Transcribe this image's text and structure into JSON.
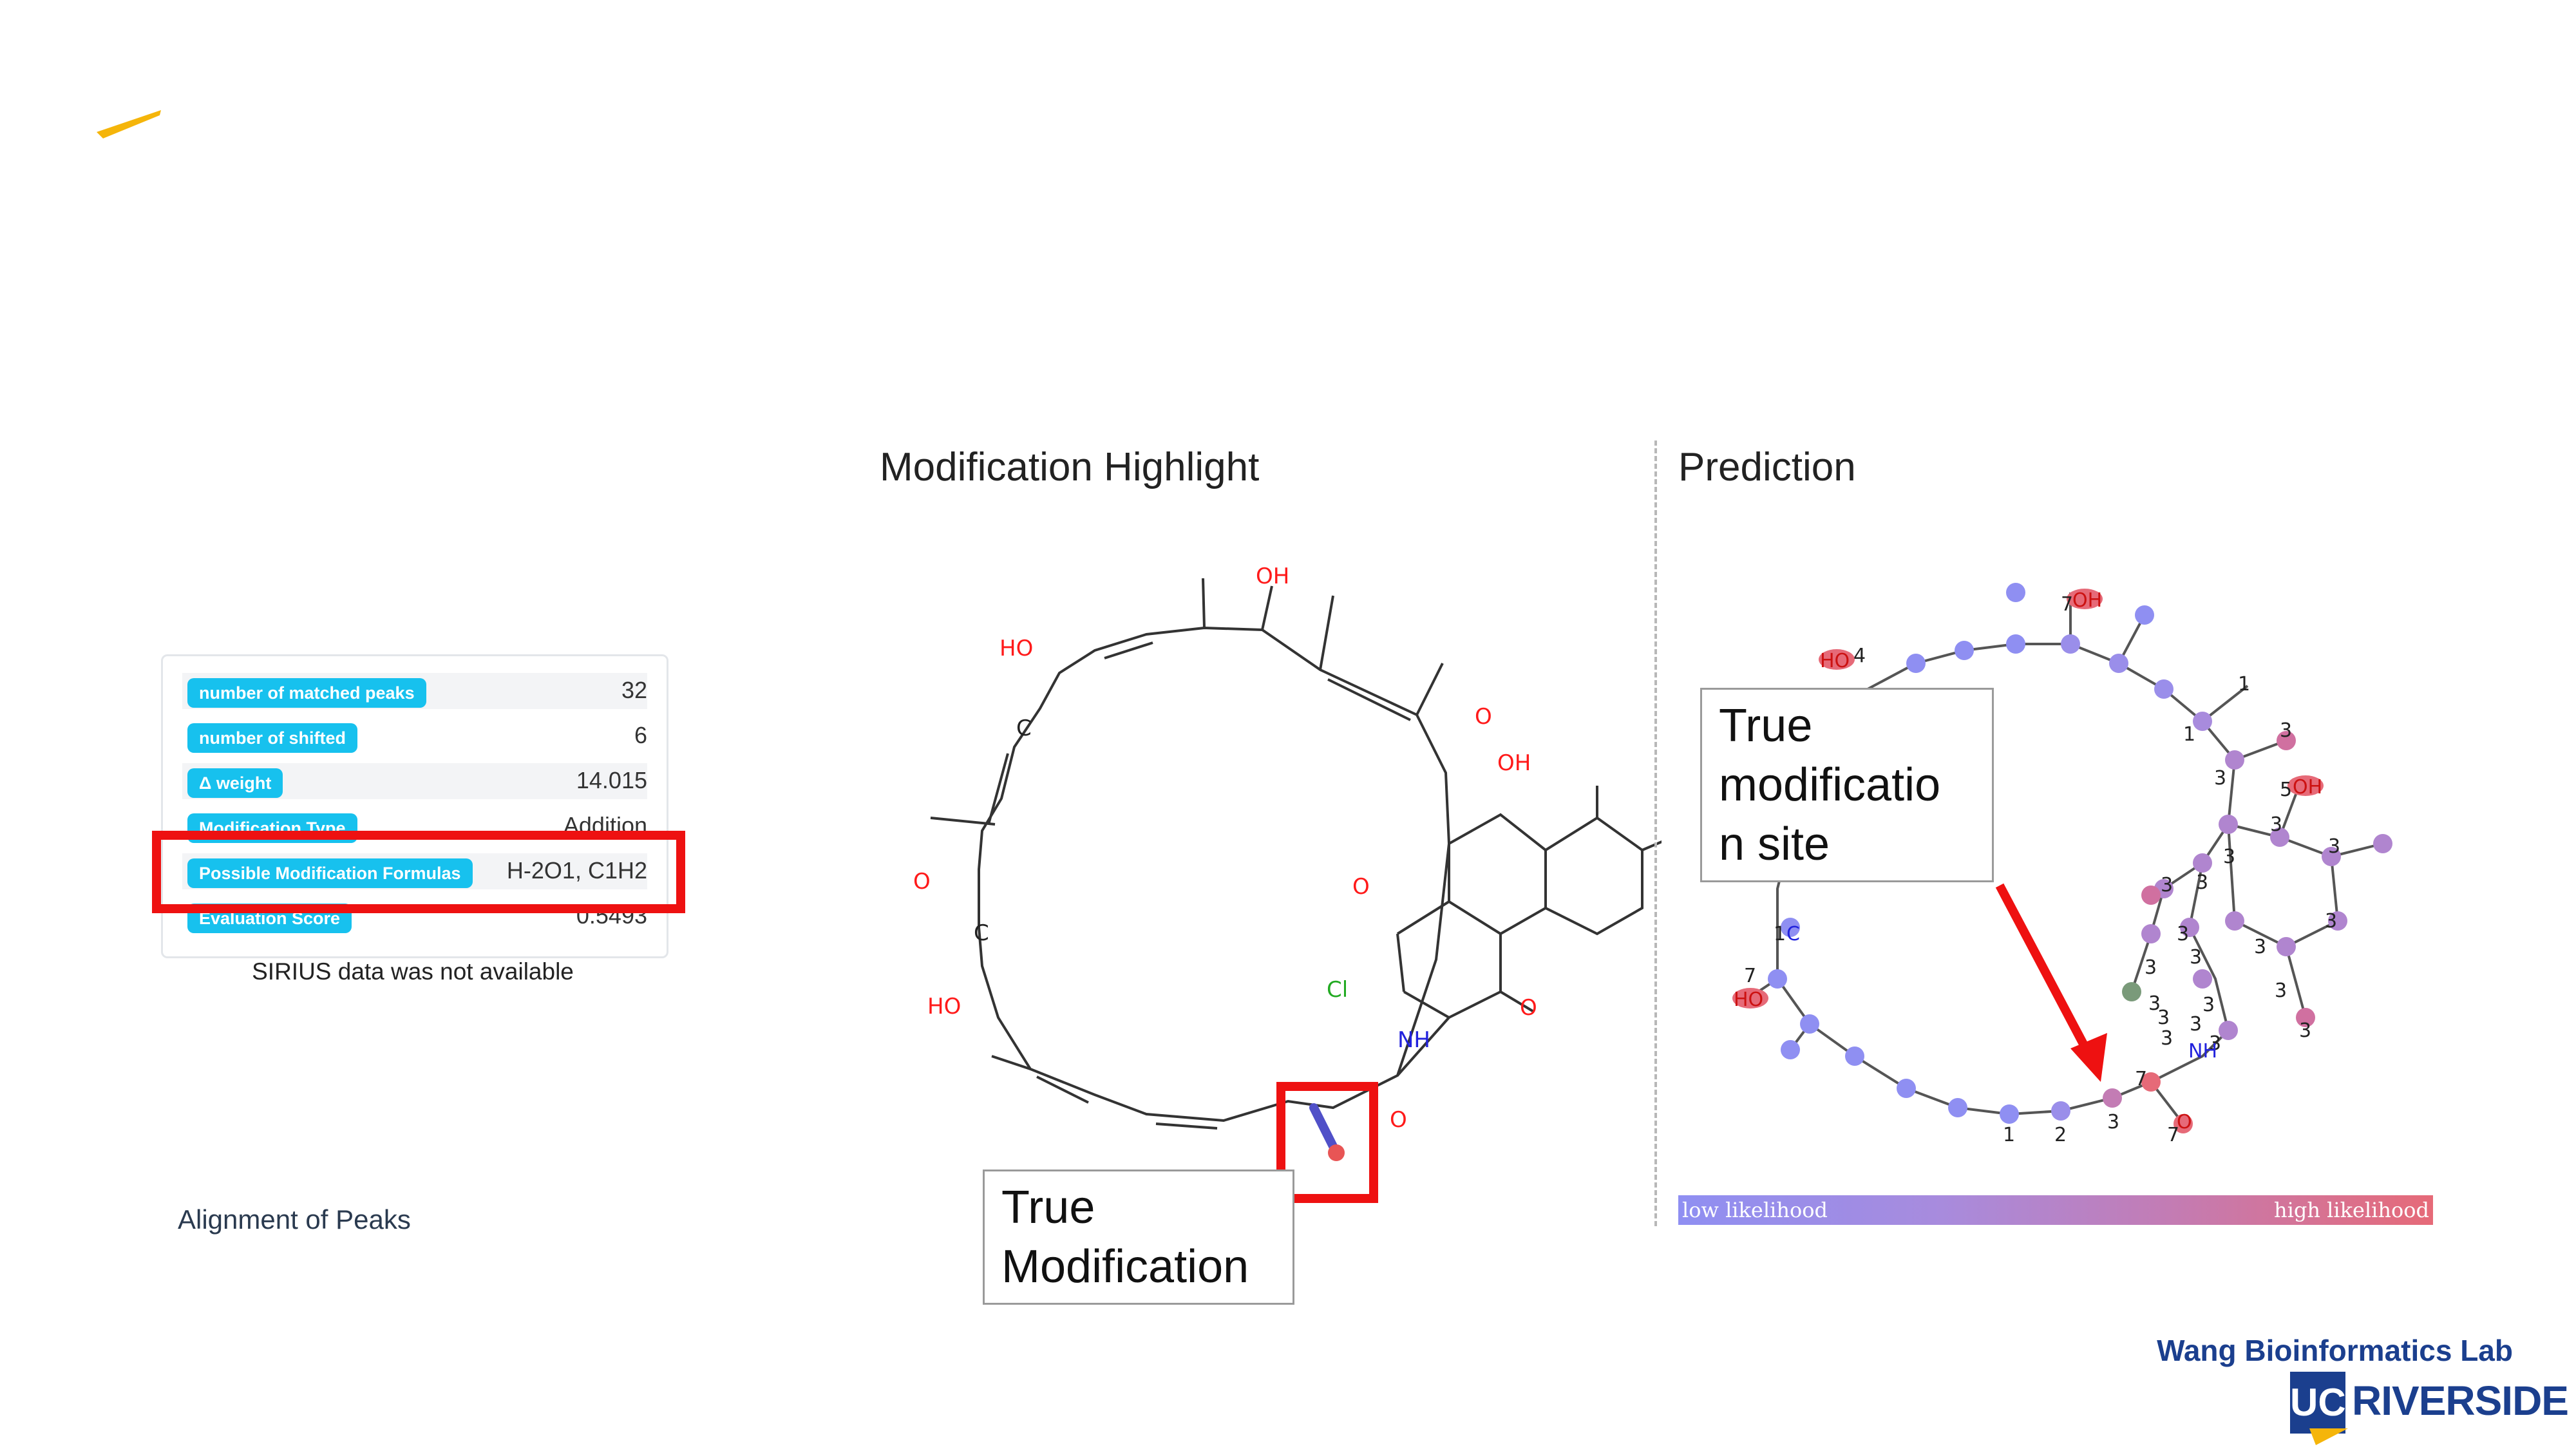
{
  "stats": [
    {
      "label": "number of matched peaks",
      "value": "32"
    },
    {
      "label": "number of shifted",
      "value": "6"
    },
    {
      "label": "Δ weight",
      "value": "14.015"
    },
    {
      "label": "Modification Type",
      "value": "Addition"
    },
    {
      "label": "Possible Modification Formulas",
      "value": "H-2O1, C1H2"
    },
    {
      "label": "Evaluation Score",
      "value": "0.5493"
    }
  ],
  "sirius_note": "SIRIUS data was not available",
  "alignment_link": "Alignment of Peaks",
  "modification_panel": {
    "title": "Modification Highlight",
    "callout": [
      "True",
      "Modification"
    ],
    "atom_labels": [
      "OH",
      "HO",
      "C",
      "O",
      "OH",
      "O",
      "C",
      "HO",
      "Cl",
      "O",
      "NH",
      "O",
      "O"
    ]
  },
  "prediction_panel": {
    "title": "Prediction",
    "callout": [
      "True",
      "modificatio",
      "n site"
    ],
    "atom_labels": [
      "7",
      "OH",
      "HO",
      "4",
      "1",
      "1",
      "3",
      "3",
      "5",
      "OH",
      "3",
      "3",
      "3",
      "3",
      "3",
      "3",
      "3",
      "3",
      "3",
      "3",
      "3",
      "3",
      "3",
      "3",
      "3",
      "3",
      "3",
      "3",
      "7",
      "NH",
      "7",
      "1",
      "2",
      "3",
      "1",
      "C",
      "7",
      "HO",
      "O"
    ],
    "colorbar": {
      "low": "low likelihood",
      "high": "high likelihood",
      "low_color": "#8f8ff2",
      "high_color": "#e66a78"
    }
  },
  "branding": {
    "lab": "Wang Bioinformatics Lab",
    "uc": "UC",
    "campus": "RIVERSIDE",
    "color": "#1b3f8e"
  },
  "colors": {
    "badge": "#17c1ee",
    "highlight": "#ee1111",
    "arrow": "#ee1111"
  }
}
